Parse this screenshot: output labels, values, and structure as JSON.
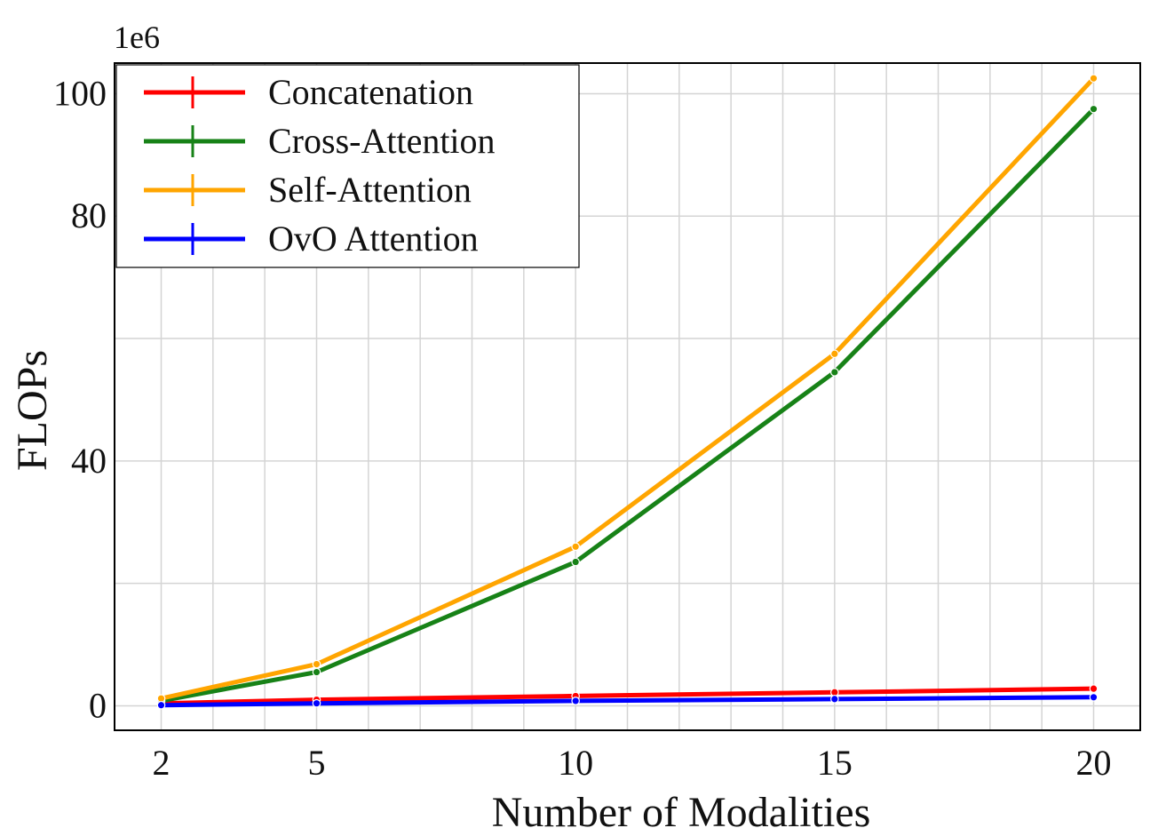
{
  "chart_data": {
    "type": "line",
    "title": "",
    "xlabel": "Number of Modalities",
    "ylabel": "FLOPs",
    "y_scale_label": "1e6",
    "x": [
      2,
      5,
      10,
      15,
      20
    ],
    "x_ticks": [
      "2",
      "5",
      "10",
      "15",
      "20"
    ],
    "y_ticks": [
      "0",
      "40",
      "80",
      "100"
    ],
    "xlim": [
      1.1,
      20.9
    ],
    "ylim": [
      -4,
      105
    ],
    "grid": true,
    "legend_position": "top-left",
    "series": [
      {
        "name": "Concatenation",
        "color": "#ff0000",
        "values": [
          0.4,
          1.0,
          1.6,
          2.2,
          2.8
        ]
      },
      {
        "name": "Cross-Attention",
        "color": "#178217",
        "values": [
          0.8,
          5.5,
          23.5,
          54.5,
          97.5
        ]
      },
      {
        "name": "Self-Attention",
        "color": "#ffa500",
        "values": [
          1.2,
          6.8,
          26.0,
          57.5,
          102.5
        ]
      },
      {
        "name": "OvO Attention",
        "color": "#0000ff",
        "values": [
          0.1,
          0.4,
          0.8,
          1.1,
          1.4
        ]
      }
    ]
  }
}
